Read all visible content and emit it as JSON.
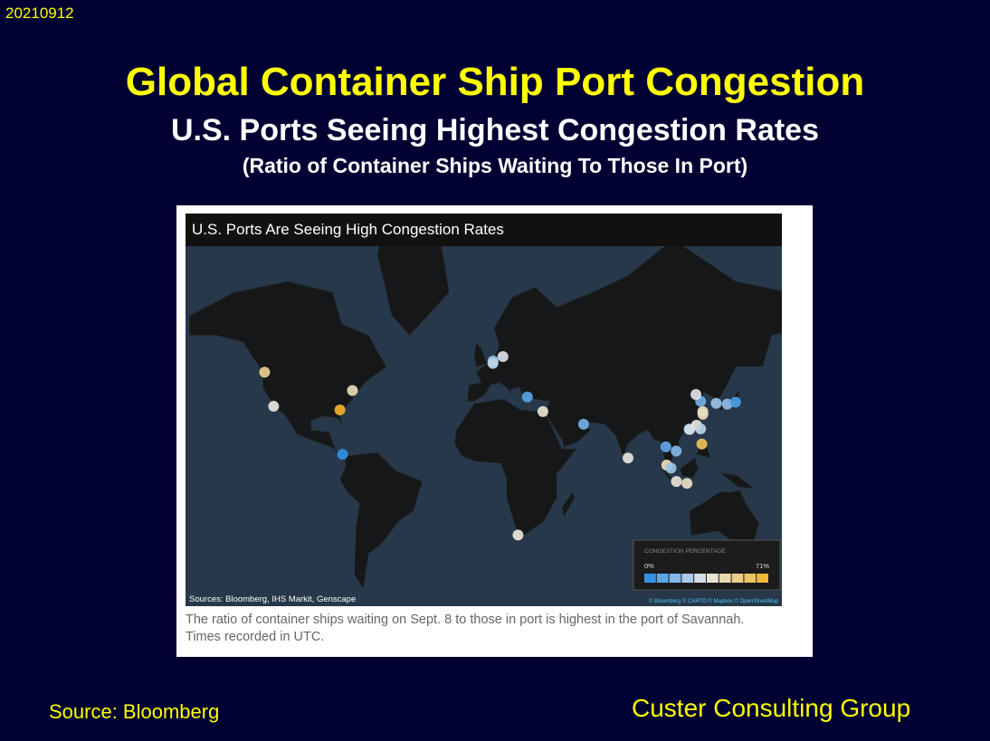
{
  "header": {
    "date": "20210912",
    "title": "Global Container Ship Port Congestion",
    "subtitle": "U.S. Ports Seeing Highest Congestion Rates",
    "note": "(Ratio of Container Ships Waiting To Those In Port)"
  },
  "map": {
    "title": "U.S. Ports Are Seeing High Congestion Rates",
    "sources": "Sources: Bloomberg, IHS Markit, Genscape",
    "attribution": "© Bloomberg © CARTO © Mapbox © OpenStreetMap",
    "legend": {
      "title": "CONGESTION PERCENTAGE",
      "ticks": [
        {
          "value": 0,
          "label": "0%"
        },
        {
          "value": 71,
          "label": "71%"
        }
      ]
    },
    "ports": [
      {
        "lon": -123,
        "lat": 48,
        "value": 52
      },
      {
        "lon": -118,
        "lat": 33.7,
        "value": 38
      },
      {
        "lon": -81,
        "lat": 32,
        "value": 71
      },
      {
        "lon": -74,
        "lat": 40.7,
        "value": 45
      },
      {
        "lon": -79.5,
        "lat": 9,
        "value": 3
      },
      {
        "lon": 4.5,
        "lat": 52,
        "value": 22
      },
      {
        "lon": 4.4,
        "lat": 51.2,
        "value": 28
      },
      {
        "lon": 10,
        "lat": 53.5,
        "value": 33
      },
      {
        "lon": 23.6,
        "lat": 37.9,
        "value": 10
      },
      {
        "lon": 32.3,
        "lat": 31.2,
        "value": 40
      },
      {
        "lon": 55,
        "lat": 25,
        "value": 15
      },
      {
        "lon": 18.4,
        "lat": -33.9,
        "value": 38
      },
      {
        "lon": 79.8,
        "lat": 6.9,
        "value": 38
      },
      {
        "lon": 100.9,
        "lat": 13.1,
        "value": 12
      },
      {
        "lon": 101.4,
        "lat": 3,
        "value": 44
      },
      {
        "lon": 103.8,
        "lat": 1.3,
        "value": 22
      },
      {
        "lon": 106.7,
        "lat": 10.8,
        "value": 18
      },
      {
        "lon": 106.8,
        "lat": -6.1,
        "value": 40
      },
      {
        "lon": 112.7,
        "lat": -7.2,
        "value": 42
      },
      {
        "lon": 113.9,
        "lat": 22.5,
        "value": 20
      },
      {
        "lon": 114.2,
        "lat": 22.3,
        "value": 32
      },
      {
        "lon": 118,
        "lat": 24.5,
        "value": 38
      },
      {
        "lon": 120.3,
        "lat": 22.6,
        "value": 28
      },
      {
        "lon": 121,
        "lat": 14.6,
        "value": 62
      },
      {
        "lon": 121.5,
        "lat": 31.2,
        "value": 40
      },
      {
        "lon": 121.6,
        "lat": 29.9,
        "value": 44
      },
      {
        "lon": 120.3,
        "lat": 36,
        "value": 15
      },
      {
        "lon": 117.7,
        "lat": 39,
        "value": 34
      },
      {
        "lon": 129,
        "lat": 35.1,
        "value": 22
      },
      {
        "lon": 135.2,
        "lat": 34.7,
        "value": 20
      },
      {
        "lon": 139.8,
        "lat": 35.6,
        "value": 8
      }
    ],
    "caption": "The ratio of container ships waiting on Sept. 8 to those in port is highest in the port of Savannah. Times recorded in UTC."
  },
  "footer": {
    "source": "Source: Bloomberg",
    "company": "Custer Consulting Group"
  }
}
